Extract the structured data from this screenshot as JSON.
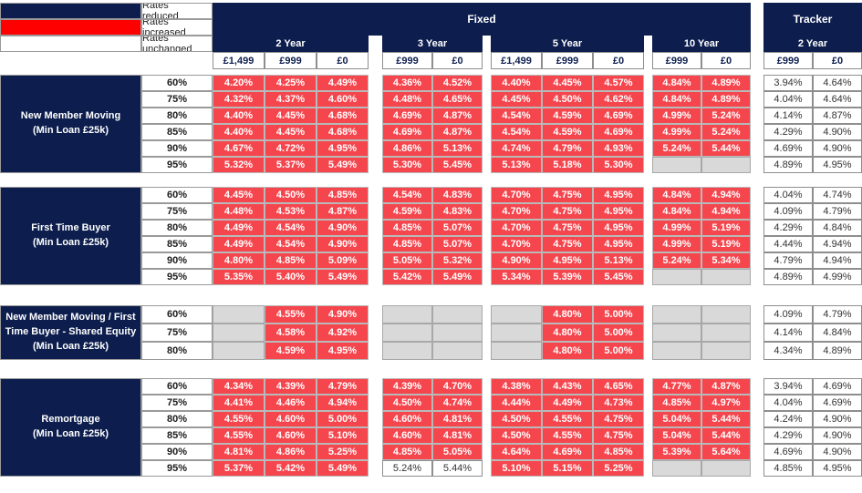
{
  "colors": {
    "navy": "#0d1e4e",
    "legend_red": "#fe0000",
    "rate_increased_red": "#f5464e",
    "na_gray": "#d9d9d9",
    "border_gray": "#9a9a9a"
  },
  "legend": {
    "items": [
      {
        "label": "Rates reduced",
        "color": "#0d1e4e"
      },
      {
        "label": "Rates increased",
        "color": "#fe0000"
      },
      {
        "label": "Rates unchanged",
        "color": "#ffffff"
      }
    ]
  },
  "header": {
    "fixed_label": "Fixed",
    "tracker_label": "Tracker",
    "fixed_groups": [
      {
        "label": "2 Year",
        "fees": [
          "£1,499",
          "£999",
          "£0"
        ]
      },
      {
        "label": "3 Year",
        "fees": [
          "£999",
          "£0"
        ]
      },
      {
        "label": "5 Year",
        "fees": [
          "£1,499",
          "£999",
          "£0"
        ]
      },
      {
        "label": "10 Year",
        "fees": [
          "£999",
          "£0"
        ]
      }
    ],
    "tracker_group": {
      "label": "2 Year",
      "fees": [
        "£999",
        "£0"
      ]
    }
  },
  "state_legend": {
    "i": "increased",
    "u": "unchanged",
    "n": "not-available"
  },
  "groups": [
    {
      "label_lines": [
        "New Member Moving",
        "(Min Loan £25k)"
      ],
      "rows": [
        {
          "ltv": "60%",
          "values": [
            "4.20%",
            "4.25%",
            "4.49%",
            "4.36%",
            "4.52%",
            "4.40%",
            "4.45%",
            "4.57%",
            "4.84%",
            "4.89%",
            "3.94%",
            "4.64%"
          ],
          "states": "iiiiiiiiiiuu"
        },
        {
          "ltv": "75%",
          "values": [
            "4.32%",
            "4.37%",
            "4.60%",
            "4.48%",
            "4.65%",
            "4.45%",
            "4.50%",
            "4.62%",
            "4.84%",
            "4.89%",
            "4.04%",
            "4.64%"
          ],
          "states": "iiiiiiiiiiuu"
        },
        {
          "ltv": "80%",
          "values": [
            "4.40%",
            "4.45%",
            "4.68%",
            "4.69%",
            "4.87%",
            "4.54%",
            "4.59%",
            "4.69%",
            "4.99%",
            "5.24%",
            "4.14%",
            "4.87%"
          ],
          "states": "iiiiiiiiiiuu"
        },
        {
          "ltv": "85%",
          "values": [
            "4.40%",
            "4.45%",
            "4.68%",
            "4.69%",
            "4.87%",
            "4.54%",
            "4.59%",
            "4.69%",
            "4.99%",
            "5.24%",
            "4.29%",
            "4.90%"
          ],
          "states": "iiiiiiiiiiuu"
        },
        {
          "ltv": "90%",
          "values": [
            "4.67%",
            "4.72%",
            "4.95%",
            "4.86%",
            "5.13%",
            "4.74%",
            "4.79%",
            "4.93%",
            "5.24%",
            "5.44%",
            "4.69%",
            "4.90%"
          ],
          "states": "iiiiiiiiiiuu"
        },
        {
          "ltv": "95%",
          "values": [
            "5.32%",
            "5.37%",
            "5.49%",
            "5.30%",
            "5.45%",
            "5.13%",
            "5.18%",
            "5.30%",
            "",
            "",
            "4.89%",
            "4.95%"
          ],
          "states": "iiiiiiiinnuu"
        }
      ]
    },
    {
      "label_lines": [
        "First Time Buyer",
        "(Min Loan £25k)"
      ],
      "rows": [
        {
          "ltv": "60%",
          "values": [
            "4.45%",
            "4.50%",
            "4.85%",
            "4.54%",
            "4.83%",
            "4.70%",
            "4.75%",
            "4.95%",
            "4.84%",
            "4.94%",
            "4.04%",
            "4.74%"
          ],
          "states": "iiiiiiiiiiuu"
        },
        {
          "ltv": "75%",
          "values": [
            "4.48%",
            "4.53%",
            "4.87%",
            "4.59%",
            "4.83%",
            "4.70%",
            "4.75%",
            "4.95%",
            "4.84%",
            "4.94%",
            "4.09%",
            "4.79%"
          ],
          "states": "iiiiiiiiiiuu"
        },
        {
          "ltv": "80%",
          "values": [
            "4.49%",
            "4.54%",
            "4.90%",
            "4.85%",
            "5.07%",
            "4.70%",
            "4.75%",
            "4.95%",
            "4.99%",
            "5.19%",
            "4.29%",
            "4.84%"
          ],
          "states": "iiiiiiiiiiuu"
        },
        {
          "ltv": "85%",
          "values": [
            "4.49%",
            "4.54%",
            "4.90%",
            "4.85%",
            "5.07%",
            "4.70%",
            "4.75%",
            "4.95%",
            "4.99%",
            "5.19%",
            "4.44%",
            "4.94%"
          ],
          "states": "iiiiiiiiiiuu"
        },
        {
          "ltv": "90%",
          "values": [
            "4.80%",
            "4.85%",
            "5.09%",
            "5.05%",
            "5.32%",
            "4.90%",
            "4.95%",
            "5.13%",
            "5.24%",
            "5.34%",
            "4.79%",
            "4.94%"
          ],
          "states": "iiiiiiiiiiuu"
        },
        {
          "ltv": "95%",
          "values": [
            "5.35%",
            "5.40%",
            "5.49%",
            "5.42%",
            "5.49%",
            "5.34%",
            "5.39%",
            "5.45%",
            "",
            "",
            "4.89%",
            "4.99%"
          ],
          "states": "iiiiiiiinnuu"
        }
      ]
    },
    {
      "label_lines": [
        "New Member Moving / First Time Buyer - Shared Equity",
        "(Min Loan £25k)"
      ],
      "rows": [
        {
          "ltv": "60%",
          "values": [
            "",
            "4.55%",
            "4.90%",
            "",
            "",
            "",
            "4.80%",
            "5.00%",
            "",
            "",
            "4.09%",
            "4.79%"
          ],
          "states": "niinnniinnuu"
        },
        {
          "ltv": "75%",
          "values": [
            "",
            "4.58%",
            "4.92%",
            "",
            "",
            "",
            "4.80%",
            "5.00%",
            "",
            "",
            "4.14%",
            "4.84%"
          ],
          "states": "niinnniinnuu"
        },
        {
          "ltv": "80%",
          "values": [
            "",
            "4.59%",
            "4.95%",
            "",
            "",
            "",
            "4.80%",
            "5.00%",
            "",
            "",
            "4.34%",
            "4.89%"
          ],
          "states": "niinnniinnuu"
        }
      ]
    },
    {
      "label_lines": [
        "Remortgage",
        "(Min Loan £25k)"
      ],
      "rows": [
        {
          "ltv": "60%",
          "values": [
            "4.34%",
            "4.39%",
            "4.79%",
            "4.39%",
            "4.70%",
            "4.38%",
            "4.43%",
            "4.65%",
            "4.77%",
            "4.87%",
            "3.94%",
            "4.69%"
          ],
          "states": "iiiiiiiiiiuu"
        },
        {
          "ltv": "75%",
          "values": [
            "4.41%",
            "4.46%",
            "4.94%",
            "4.50%",
            "4.74%",
            "4.44%",
            "4.49%",
            "4.73%",
            "4.85%",
            "4.97%",
            "4.04%",
            "4.69%"
          ],
          "states": "iiiiiiiiiiuu"
        },
        {
          "ltv": "80%",
          "values": [
            "4.55%",
            "4.60%",
            "5.00%",
            "4.60%",
            "4.81%",
            "4.50%",
            "4.55%",
            "4.75%",
            "5.04%",
            "5.44%",
            "4.24%",
            "4.90%"
          ],
          "states": "iiiiiiiiiiuu"
        },
        {
          "ltv": "85%",
          "values": [
            "4.55%",
            "4.60%",
            "5.10%",
            "4.60%",
            "4.81%",
            "4.50%",
            "4.55%",
            "4.75%",
            "5.04%",
            "5.44%",
            "4.29%",
            "4.90%"
          ],
          "states": "iiiiiiiiiiuu"
        },
        {
          "ltv": "90%",
          "values": [
            "4.81%",
            "4.86%",
            "5.25%",
            "4.85%",
            "5.05%",
            "4.64%",
            "4.69%",
            "4.85%",
            "5.39%",
            "5.64%",
            "4.69%",
            "4.90%"
          ],
          "states": "iiiiiiiiiiuu"
        },
        {
          "ltv": "95%",
          "values": [
            "5.37%",
            "5.42%",
            "5.49%",
            "5.24%",
            "5.44%",
            "5.10%",
            "5.15%",
            "5.25%",
            "",
            "",
            "4.85%",
            "4.95%"
          ],
          "states": "iiiuuiiinnuu"
        }
      ]
    }
  ]
}
